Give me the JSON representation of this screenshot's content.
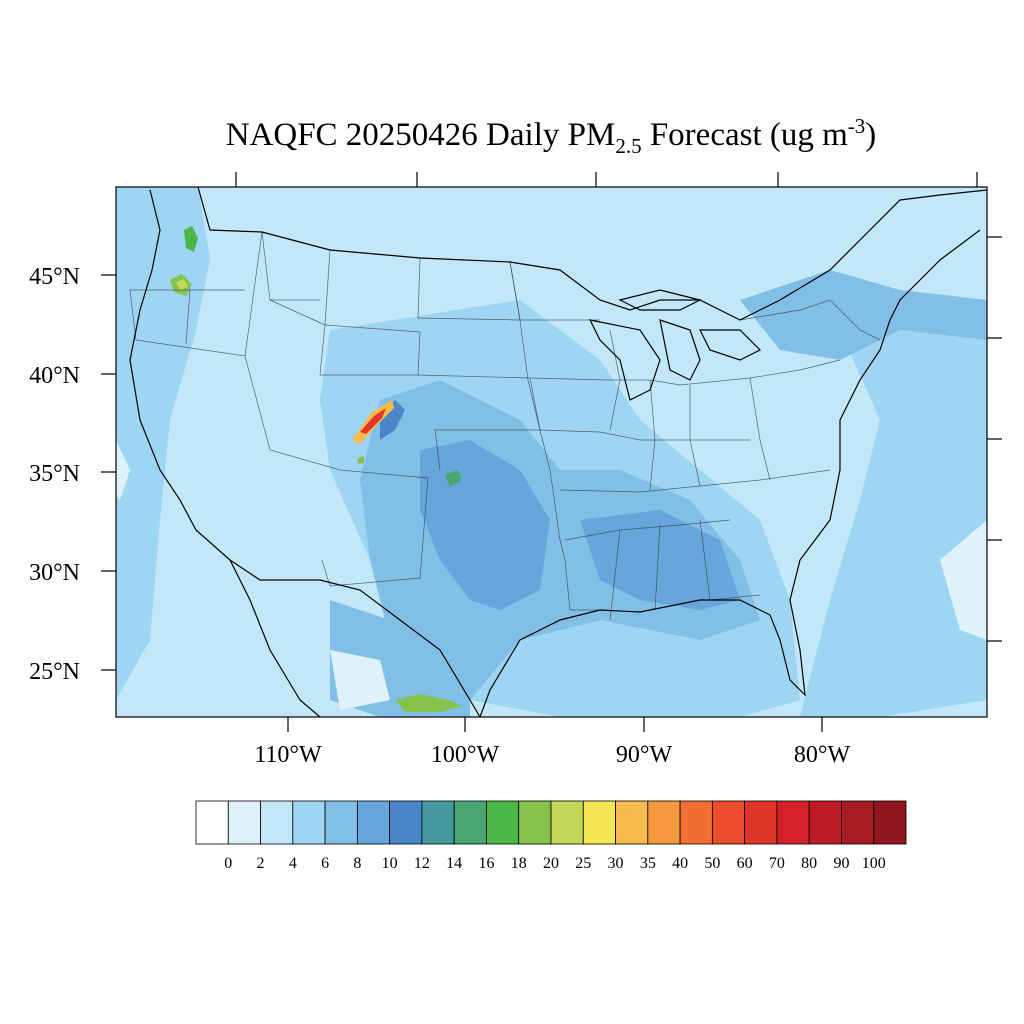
{
  "title": {
    "prefix": "NAQFC 20250426 Daily PM",
    "subscript": "2.5",
    "suffix": " Forecast (ug m",
    "superscript": "-3",
    "close": ")"
  },
  "map": {
    "lat_labels": [
      "45°N",
      "40°N",
      "35°N",
      "30°N",
      "25°N"
    ],
    "lon_labels": [
      "110°W",
      "100°W",
      "90°W",
      "80°W"
    ]
  },
  "colorbar": {
    "labels": [
      "0",
      "2",
      "4",
      "6",
      "8",
      "10",
      "12",
      "14",
      "16",
      "18",
      "20",
      "25",
      "30",
      "35",
      "40",
      "50",
      "60",
      "70",
      "80",
      "90",
      "100"
    ],
    "colors": [
      "#ffffff",
      "#dff1fb",
      "#c1e7f8",
      "#9ed5f2",
      "#82bfe6",
      "#66a6da",
      "#4a87c8",
      "#449a9e",
      "#48a672",
      "#4cb647",
      "#86c34c",
      "#c3d758",
      "#f7e757",
      "#f7bc4c",
      "#f6993e",
      "#f26e31",
      "#ea4c2c",
      "#e03629",
      "#d42029",
      "#bf1c27",
      "#a71b22",
      "#8e161c"
    ]
  },
  "palette": {
    "background_field": "#c1e7f8",
    "low": "#dff1fb",
    "medium": "#9ed5f2",
    "high": "#82bfe6",
    "higher": "#66a6da",
    "highest": "#4a87c8"
  }
}
